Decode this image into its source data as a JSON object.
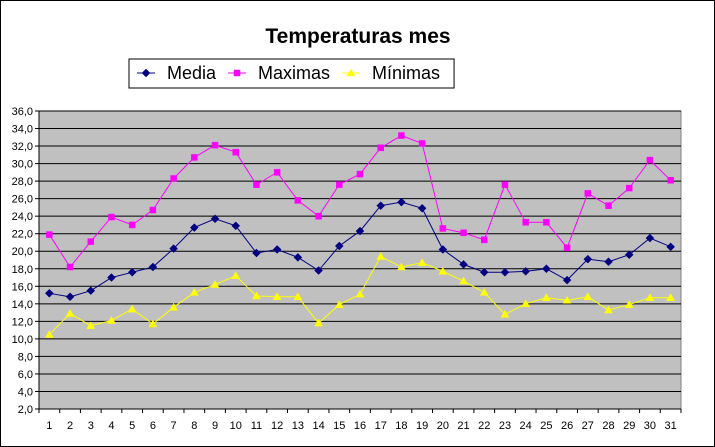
{
  "chart_data": {
    "type": "line",
    "title": "Temperaturas mes",
    "xlabel": "",
    "ylabel": "",
    "x": [
      "1",
      "2",
      "3",
      "4",
      "5",
      "6",
      "7",
      "8",
      "9",
      "10",
      "11",
      "12",
      "13",
      "14",
      "15",
      "16",
      "17",
      "18",
      "19",
      "20",
      "21",
      "22",
      "23",
      "24",
      "25",
      "26",
      "27",
      "28",
      "29",
      "30",
      "31"
    ],
    "ylim": [
      2.0,
      36.0
    ],
    "yticks": [
      "2,0",
      "4,0",
      "6,0",
      "8,0",
      "10,0",
      "12,0",
      "14,0",
      "16,0",
      "18,0",
      "20,0",
      "22,0",
      "24,0",
      "26,0",
      "28,0",
      "30,0",
      "32,0",
      "34,0",
      "36,0"
    ],
    "grid": true,
    "plot_background": "#c0c0c0",
    "legend_position": "top",
    "series": [
      {
        "name": "Media",
        "color": "#000080",
        "marker": "diamond",
        "values": [
          15.2,
          14.8,
          15.5,
          17.0,
          17.6,
          18.2,
          20.3,
          22.7,
          23.7,
          22.9,
          19.8,
          20.2,
          19.3,
          17.8,
          20.6,
          22.3,
          25.2,
          25.6,
          24.9,
          20.2,
          18.5,
          17.6,
          17.6,
          17.7,
          18.0,
          16.7,
          19.1,
          18.8,
          19.6,
          21.5,
          20.5
        ]
      },
      {
        "name": "Maximas",
        "color": "#ff00ff",
        "marker": "square",
        "values": [
          21.9,
          18.2,
          21.1,
          23.9,
          23.0,
          24.7,
          28.3,
          30.7,
          32.1,
          31.3,
          27.6,
          29.0,
          25.8,
          24.0,
          27.6,
          28.8,
          31.8,
          33.2,
          32.3,
          22.6,
          22.1,
          21.3,
          27.6,
          23.3,
          23.3,
          20.4,
          26.6,
          25.2,
          27.2,
          30.4,
          28.1
        ]
      },
      {
        "name": "Mínimas",
        "color": "#ffff00",
        "marker": "triangle",
        "values": [
          10.5,
          12.9,
          11.5,
          12.1,
          13.4,
          11.7,
          13.6,
          15.3,
          16.2,
          17.2,
          14.9,
          14.8,
          14.8,
          11.8,
          13.9,
          15.1,
          19.4,
          18.2,
          18.7,
          17.7,
          16.6,
          15.3,
          12.8,
          14.0,
          14.7,
          14.4,
          14.8,
          13.3,
          13.9,
          14.7,
          14.7
        ]
      }
    ]
  }
}
